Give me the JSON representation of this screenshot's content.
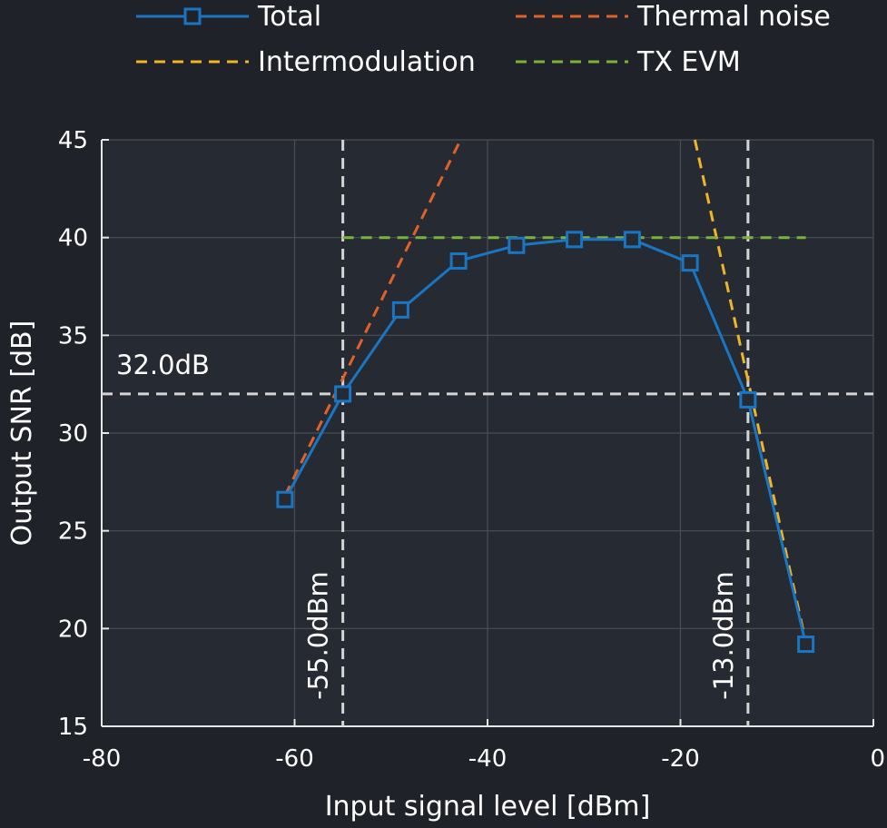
{
  "chart_data": {
    "type": "line",
    "xlabel": "Input signal level [dBm]",
    "ylabel": "Output SNR [dB]",
    "xlim": [
      -80,
      0
    ],
    "ylim": [
      15,
      45
    ],
    "xticks": [
      -80,
      -60,
      -40,
      -20,
      0
    ],
    "yticks": [
      15,
      20,
      25,
      30,
      35,
      40,
      45
    ],
    "grid": true,
    "legend_position": "top",
    "series": [
      {
        "name": "Total",
        "color": "#1a76c2",
        "style": "solid",
        "marker": "square",
        "x": [
          -61,
          -55,
          -49,
          -43,
          -37,
          -31,
          -25,
          -19,
          -13,
          -7
        ],
        "y": [
          26.6,
          32.0,
          36.3,
          38.8,
          39.6,
          39.9,
          39.9,
          38.7,
          31.7,
          19.2
        ]
      },
      {
        "name": "Thermal noise",
        "color": "#e0622a",
        "style": "dashed",
        "x": [
          -61,
          -42.8
        ],
        "y": [
          26.8,
          45
        ]
      },
      {
        "name": "Intermodulation",
        "color": "#f0b429",
        "style": "dashed",
        "x": [
          -18.5,
          -7
        ],
        "y": [
          45,
          19.3
        ]
      },
      {
        "name": "TX EVM",
        "color": "#7ab33a",
        "style": "dashed",
        "x": [
          -55,
          -7
        ],
        "y": [
          40,
          40
        ]
      }
    ],
    "reference_lines": {
      "horizontal": {
        "y": 32.0,
        "label": "32.0dB"
      },
      "vertical": [
        {
          "x": -55.0,
          "label": "-55.0dBm"
        },
        {
          "x": -13.0,
          "label": "-13.0dBm"
        }
      ]
    }
  }
}
